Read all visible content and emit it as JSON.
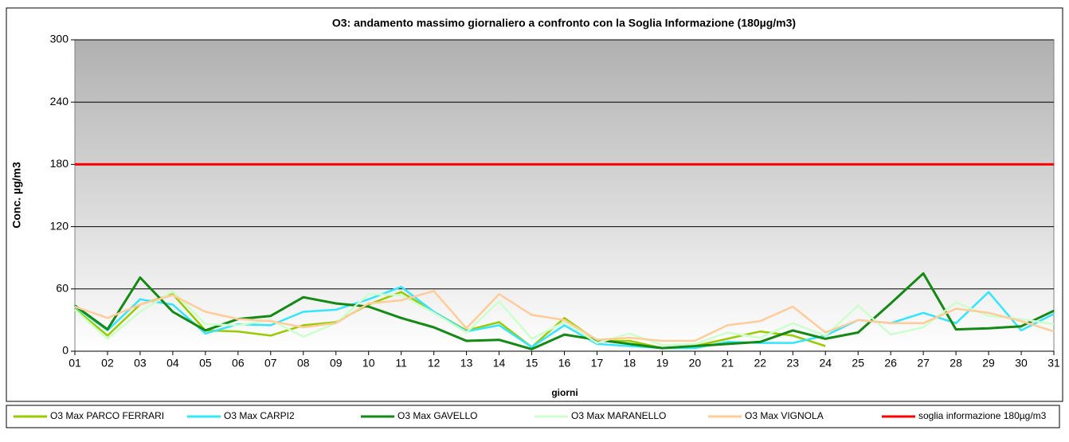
{
  "chart_data": {
    "type": "line",
    "title": "O3: andamento massimo giornaliero a confronto con la Soglia Informazione (180µg/m3)",
    "y_label": "Conc. µg/m3",
    "x_label": "giorni",
    "categories": [
      "01",
      "02",
      "03",
      "04",
      "05",
      "06",
      "07",
      "08",
      "09",
      "10",
      "11",
      "12",
      "13",
      "14",
      "15",
      "16",
      "17",
      "18",
      "19",
      "20",
      "21",
      "22",
      "23",
      "24",
      "25",
      "26",
      "27",
      "28",
      "29",
      "30",
      "31"
    ],
    "ylim": [
      0,
      300
    ],
    "yticks": [
      0,
      60,
      120,
      180,
      240,
      300
    ],
    "grid": true,
    "legend": "bottom",
    "series": [
      {
        "name": "O3 Max PARCO FERRARI",
        "color": "#99cc00",
        "values": [
          41,
          15,
          45,
          55,
          20,
          19,
          15,
          25,
          28,
          45,
          57,
          38,
          20,
          28,
          4,
          32,
          10,
          10,
          3,
          5,
          12,
          19,
          15,
          5,
          null,
          null,
          null,
          null,
          null,
          null,
          null
        ]
      },
      {
        "name": "O3 Max CARPI2",
        "color": "#33e6ff",
        "values": [
          43,
          20,
          50,
          45,
          17,
          26,
          25,
          38,
          40,
          50,
          62,
          38,
          19,
          25,
          4,
          25,
          7,
          5,
          3,
          3,
          9,
          8,
          8,
          15,
          30,
          27,
          37,
          27,
          57,
          20,
          36
        ]
      },
      {
        "name": "O3 Max GAVELLO",
        "color": "#138a13",
        "values": [
          44,
          21,
          71,
          38,
          20,
          31,
          34,
          52,
          46,
          43,
          32,
          23,
          10,
          11,
          2,
          16,
          11,
          7,
          3,
          5,
          7,
          9,
          20,
          12,
          18,
          46,
          75,
          21,
          22,
          24,
          39
        ]
      },
      {
        "name": "O3 Max MARANELLO",
        "color": "#ccffcc",
        "values": [
          40,
          12,
          38,
          58,
          26,
          25,
          30,
          14,
          27,
          55,
          54,
          37,
          18,
          48,
          12,
          28,
          8,
          17,
          6,
          7,
          18,
          13,
          27,
          15,
          44,
          16,
          23,
          47,
          34,
          31,
          26
        ]
      },
      {
        "name": "O3 Max VIGNOLA",
        "color": "#ffcc99",
        "values": [
          43,
          32,
          45,
          54,
          38,
          31,
          29,
          23,
          27,
          46,
          49,
          58,
          22,
          55,
          35,
          30,
          11,
          13,
          10,
          10,
          25,
          29,
          43,
          18,
          30,
          27,
          27,
          41,
          37,
          29,
          19
        ]
      },
      {
        "name": "soglia informazione 180µg/m3",
        "color": "#ff0000",
        "values": [
          180,
          180,
          180,
          180,
          180,
          180,
          180,
          180,
          180,
          180,
          180,
          180,
          180,
          180,
          180,
          180,
          180,
          180,
          180,
          180,
          180,
          180,
          180,
          180,
          180,
          180,
          180,
          180,
          180,
          180,
          180
        ]
      }
    ]
  }
}
